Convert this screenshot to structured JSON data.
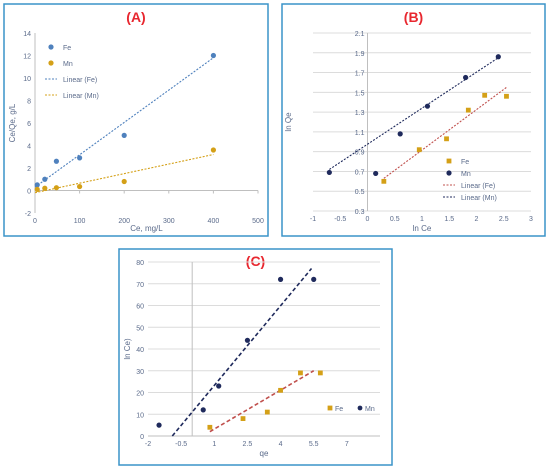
{
  "colors": {
    "fe_blue": "#4f81bd",
    "mn_orange": "#d4a017",
    "navy_points": "#1f2a5c",
    "linear_fe_blue": "#4f81bd",
    "linear_fe_orange": "#c0504d",
    "frame_blue": "#3a94c9",
    "title_red": "#e8272f",
    "grid": "#dcdcdc",
    "axis": "#bfbfbf",
    "text": "#5a6a8a"
  },
  "chart_data": [
    {
      "id": "A",
      "type": "scatter",
      "title": "(A)",
      "xlabel": "Ce, mg/L",
      "ylabel": "Ce/Qe, g/L",
      "xlim": [
        0,
        500
      ],
      "ylim": [
        -2,
        14
      ],
      "xticks": [
        "0",
        "100",
        "200",
        "300",
        "400",
        "500"
      ],
      "yticks": [
        "-2",
        "0",
        "2",
        "4",
        "6",
        "8",
        "10",
        "12",
        "14"
      ],
      "grid": "none",
      "legend_position": "top-left",
      "series": [
        {
          "name": "Fe",
          "points": [
            [
              5,
              0.5
            ],
            [
              22,
              1.0
            ],
            [
              48,
              2.6
            ],
            [
              100,
              2.9
            ],
            [
              200,
              4.9
            ],
            [
              400,
              12.0
            ]
          ]
        },
        {
          "name": "Mn",
          "points": [
            [
              5,
              0.1
            ],
            [
              22,
              0.2
            ],
            [
              48,
              0.25
            ],
            [
              100,
              0.35
            ],
            [
              200,
              0.8
            ],
            [
              400,
              3.6
            ]
          ]
        }
      ],
      "lines": [
        {
          "name": "Linear (Fe)",
          "from": [
            0,
            0.3
          ],
          "to": [
            400,
            11.8
          ]
        },
        {
          "name": "Linear (Mn)",
          "from": [
            0,
            -0.2
          ],
          "to": [
            400,
            3.2
          ]
        }
      ]
    },
    {
      "id": "B",
      "type": "scatter",
      "title": "(B)",
      "xlabel": "ln Ce",
      "ylabel": "ln Qe",
      "xlim": [
        -1,
        3
      ],
      "ylim": [
        0.3,
        2.1
      ],
      "xticks": [
        "-1",
        "-0.5",
        "0",
        "0.5",
        "1",
        "1.5",
        "2",
        "2.5",
        "3"
      ],
      "yticks": [
        "0.3",
        "0.5",
        "0.7",
        "0.9",
        "1.1",
        "1.3",
        "1.5",
        "1.7",
        "1.9",
        "2.1"
      ],
      "grid": "horizontal",
      "legend_position": "right",
      "series": [
        {
          "name": "Fe",
          "points": [
            [
              0.3,
              0.6
            ],
            [
              0.95,
              0.92
            ],
            [
              1.45,
              1.03
            ],
            [
              1.85,
              1.32
            ],
            [
              2.15,
              1.47
            ],
            [
              2.55,
              1.46
            ]
          ]
        },
        {
          "name": "Mn",
          "points": [
            [
              -0.7,
              0.69
            ],
            [
              0.15,
              0.68
            ],
            [
              0.6,
              1.08
            ],
            [
              1.1,
              1.36
            ],
            [
              1.8,
              1.65
            ],
            [
              2.4,
              1.86
            ]
          ]
        }
      ],
      "lines": [
        {
          "name": "Linear (Fe)",
          "from": [
            0.3,
            0.63
          ],
          "to": [
            2.55,
            1.55
          ]
        },
        {
          "name": "Linear (Mn)",
          "from": [
            -0.7,
            0.72
          ],
          "to": [
            2.4,
            1.85
          ]
        }
      ]
    },
    {
      "id": "C",
      "type": "scatter",
      "title": "(C)",
      "xlabel": "qe",
      "ylabel": "ln Ce)",
      "xlim": [
        -2,
        8.5
      ],
      "ylim": [
        0,
        80
      ],
      "xticks": [
        "-2",
        "-0.5",
        "1",
        "2.5",
        "4",
        "5.5",
        "7"
      ],
      "yticks": [
        "0",
        "10",
        "20",
        "30",
        "40",
        "50",
        "60",
        "70",
        "80"
      ],
      "grid": "horizontal",
      "legend_position": "bottom-right",
      "series": [
        {
          "name": "Fe",
          "points": [
            [
              0.8,
              4
            ],
            [
              2.3,
              8
            ],
            [
              3.4,
              11
            ],
            [
              4.0,
              21
            ],
            [
              4.9,
              29
            ],
            [
              5.8,
              29
            ]
          ]
        },
        {
          "name": "Mn",
          "points": [
            [
              -1.5,
              5
            ],
            [
              0.5,
              12
            ],
            [
              1.2,
              23
            ],
            [
              2.5,
              44
            ],
            [
              4.0,
              72
            ],
            [
              5.5,
              72
            ]
          ]
        }
      ],
      "lines": [
        {
          "name": "Fe",
          "from": [
            0.8,
            2
          ],
          "to": [
            5.5,
            30
          ]
        },
        {
          "name": "Mn",
          "from": [
            -0.9,
            0
          ],
          "to": [
            5.4,
            77
          ]
        }
      ]
    }
  ]
}
